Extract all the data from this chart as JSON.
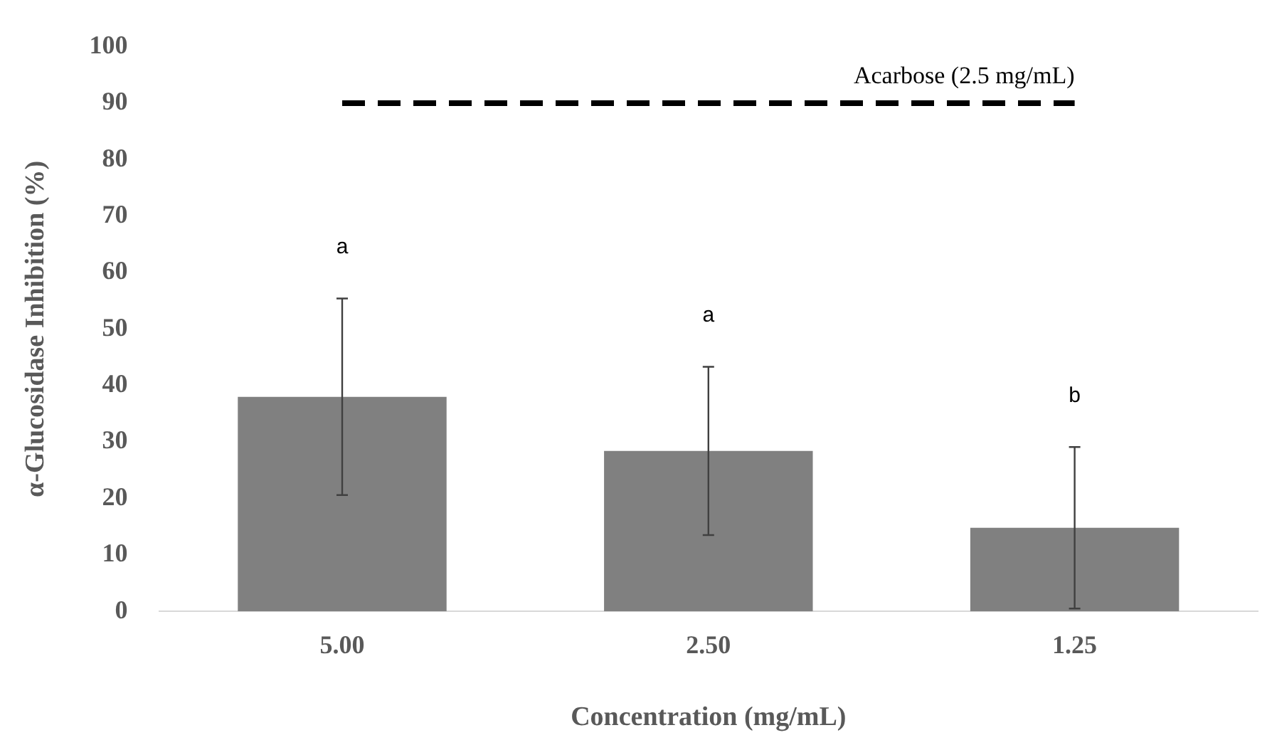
{
  "chart_data": {
    "type": "bar",
    "xlabel": "Concentration (mg/mL)",
    "ylabel": "α-Glucosidase Inhibition (%)",
    "categories": [
      "5.00",
      "2.50",
      "1.25"
    ],
    "values": [
      38.0,
      28.4,
      14.8
    ],
    "color": "#808080",
    "errors": [
      17.4,
      14.9,
      14.3
    ],
    "ylim": [
      0,
      100
    ],
    "yticks": [
      0,
      10,
      20,
      30,
      40,
      50,
      60,
      70,
      80,
      90,
      100
    ],
    "grid": false,
    "legend": false,
    "ref_lines": [
      {
        "axis": "y",
        "value": 90,
        "label": "Acarbose (2.5 mg/mL)",
        "color": "#000000",
        "line_style": "dashed"
      }
    ],
    "annotations": [
      "a",
      "a",
      "b"
    ]
  }
}
